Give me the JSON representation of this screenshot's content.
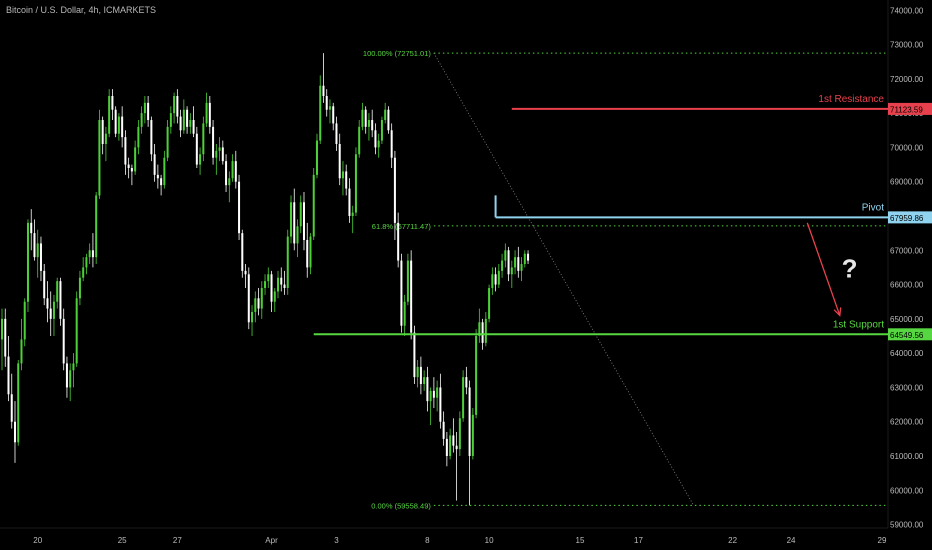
{
  "symbol_line": "Bitcoin / U.S. Dollar, 4h, ICMARKETS",
  "colors": {
    "background": "#000000",
    "bull": "#4cd137",
    "bear": "#ffffff",
    "resistance": "#e8414d",
    "pivot": "#8fd3ee",
    "support": "#56d641",
    "fib": "#56d641",
    "arrow": "#e8414d",
    "axis_text": "#bcbcbc"
  },
  "chart_data": {
    "type": "candlestick",
    "title": "Bitcoin / U.S. Dollar, 4h, ICMARKETS",
    "y_axis": {
      "position": "right",
      "min": 58900,
      "max": 74300,
      "ticks": [
        59000,
        60000,
        61000,
        62000,
        63000,
        64000,
        65000,
        66000,
        67000,
        68000,
        69000,
        70000,
        71000,
        72000,
        73000,
        74000
      ],
      "tick_labels": [
        "59000.00",
        "60000.00",
        "61000.00",
        "62000.00",
        "63000.00",
        "64000.00",
        "65000.00",
        "66000.00",
        "67000.00",
        "68000.00",
        "69000.00",
        "70000.00",
        "71000.00",
        "72000.00",
        "73000.00",
        "74000.00"
      ]
    },
    "x_axis": {
      "unit": "candle index (4h bars)",
      "min": 0,
      "max": 271,
      "ticks": [
        {
          "index": 11,
          "label": "20"
        },
        {
          "index": 37,
          "label": "25"
        },
        {
          "index": 54,
          "label": "27"
        },
        {
          "index": 83,
          "label": "Apr"
        },
        {
          "index": 103,
          "label": "3"
        },
        {
          "index": 131,
          "label": "8"
        },
        {
          "index": 150,
          "label": "10"
        },
        {
          "index": 178,
          "label": "15"
        },
        {
          "index": 196,
          "label": "17"
        },
        {
          "index": 225,
          "label": "22"
        },
        {
          "index": 243,
          "label": "24"
        },
        {
          "index": 271,
          "label": "29"
        }
      ]
    },
    "levels": [
      {
        "name": "1st Resistance",
        "value": 71123.59,
        "label": "71123.59",
        "from_index": 157,
        "color": "#e8414d"
      },
      {
        "name": "Pivot",
        "value": 67959.86,
        "label": "67959.86",
        "from_index": 152,
        "color": "#8fd3ee"
      },
      {
        "name": "1st Support",
        "value": 64549.56,
        "label": "64549.56",
        "from_index": 96,
        "color": "#56d641"
      }
    ],
    "fibonacci": {
      "high": {
        "label": "100.00% (72751.01)",
        "value": 72751.01
      },
      "mid": {
        "label": "61.8% (67711.47)",
        "value": 67711.47
      },
      "low": {
        "label": "0.00% (59558.49)",
        "value": 59558.49
      },
      "from_index": 133,
      "to_index": 213
    },
    "annotations": [
      {
        "type": "arrow",
        "from": {
          "index": 248,
          "value": 67800
        },
        "to": {
          "index": 258,
          "value": 65100
        }
      },
      {
        "type": "text",
        "text": "?",
        "index": 261,
        "value": 66200
      }
    ],
    "candles": [
      [
        64400,
        65300,
        63500,
        65000
      ],
      [
        65000,
        65300,
        63600,
        63900
      ],
      [
        63900,
        64500,
        62600,
        62800
      ],
      [
        62800,
        63400,
        61800,
        62000
      ],
      [
        62000,
        62600,
        60800,
        61400
      ],
      [
        61400,
        63800,
        61300,
        63700
      ],
      [
        63700,
        65000,
        63500,
        64400
      ],
      [
        64400,
        65600,
        64200,
        65500
      ],
      [
        65500,
        67900,
        65200,
        67800
      ],
      [
        67800,
        68200,
        67000,
        67500
      ],
      [
        67500,
        67900,
        66700,
        66800
      ],
      [
        66800,
        67600,
        66200,
        67200
      ],
      [
        67200,
        67400,
        66100,
        66400
      ],
      [
        66400,
        66600,
        65400,
        65600
      ],
      [
        65600,
        66100,
        64900,
        65300
      ],
      [
        65300,
        65800,
        64500,
        65000
      ],
      [
        65000,
        65700,
        64500,
        65500
      ],
      [
        65500,
        66200,
        65300,
        66100
      ],
      [
        66100,
        66200,
        64800,
        65000
      ],
      [
        65000,
        65300,
        63500,
        63700
      ],
      [
        63700,
        63900,
        62700,
        63000
      ],
      [
        63000,
        63700,
        62600,
        63500
      ],
      [
        63500,
        64000,
        63000,
        63700
      ],
      [
        63700,
        65800,
        63600,
        65600
      ],
      [
        65600,
        66400,
        65400,
        66200
      ],
      [
        66200,
        66800,
        66100,
        66500
      ],
      [
        66500,
        66900,
        66300,
        66800
      ],
      [
        66800,
        67200,
        66600,
        67000
      ],
      [
        67000,
        67500,
        66500,
        66800
      ],
      [
        66800,
        68700,
        66600,
        68600
      ],
      [
        68600,
        71100,
        68500,
        70800
      ],
      [
        70800,
        70900,
        69800,
        70100
      ],
      [
        70100,
        70600,
        69600,
        70400
      ],
      [
        70400,
        71700,
        70300,
        71500
      ],
      [
        71500,
        71700,
        70800,
        71100
      ],
      [
        71100,
        71200,
        70300,
        70400
      ],
      [
        70400,
        71000,
        70200,
        70900
      ],
      [
        70900,
        71200,
        70000,
        70300
      ],
      [
        70300,
        70500,
        69200,
        69500
      ],
      [
        69500,
        69700,
        69100,
        69400
      ],
      [
        69400,
        69500,
        68900,
        69300
      ],
      [
        69300,
        70200,
        69200,
        70000
      ],
      [
        70000,
        70800,
        69800,
        70600
      ],
      [
        70600,
        71200,
        70400,
        71000
      ],
      [
        71000,
        71500,
        70700,
        71300
      ],
      [
        71300,
        71500,
        70600,
        70800
      ],
      [
        70800,
        70900,
        69600,
        69800
      ],
      [
        69800,
        70100,
        69000,
        69200
      ],
      [
        69200,
        69500,
        68800,
        69100
      ],
      [
        69100,
        69200,
        68600,
        68900
      ],
      [
        68900,
        69900,
        68800,
        69700
      ],
      [
        69700,
        70800,
        69600,
        70600
      ],
      [
        70600,
        71200,
        70400,
        71000
      ],
      [
        71000,
        71600,
        70700,
        71500
      ],
      [
        71500,
        71700,
        70700,
        70900
      ],
      [
        70900,
        71100,
        70300,
        70500
      ],
      [
        70500,
        71400,
        70400,
        71100
      ],
      [
        71100,
        71200,
        70400,
        70600
      ],
      [
        70600,
        71000,
        70400,
        70800
      ],
      [
        70800,
        71200,
        70300,
        70400
      ],
      [
        70400,
        70600,
        69400,
        69500
      ],
      [
        69500,
        70000,
        69200,
        69800
      ],
      [
        69800,
        70900,
        69600,
        70700
      ],
      [
        70700,
        71600,
        70600,
        71300
      ],
      [
        71300,
        71500,
        70400,
        70600
      ],
      [
        70600,
        70800,
        69500,
        69700
      ],
      [
        69700,
        70100,
        69200,
        69900
      ],
      [
        69900,
        70300,
        69600,
        70000
      ],
      [
        70000,
        70200,
        69500,
        69600
      ],
      [
        69600,
        69800,
        68700,
        68900
      ],
      [
        68900,
        69300,
        68400,
        69100
      ],
      [
        69100,
        69800,
        69000,
        69600
      ],
      [
        69600,
        69900,
        68800,
        69000
      ],
      [
        69000,
        69200,
        67300,
        67500
      ],
      [
        67500,
        67600,
        66200,
        66400
      ],
      [
        66400,
        66600,
        65900,
        66300
      ],
      [
        66300,
        66500,
        64700,
        64900
      ],
      [
        64900,
        65400,
        64500,
        65200
      ],
      [
        65200,
        65800,
        64900,
        65600
      ],
      [
        65600,
        65900,
        65100,
        65300
      ],
      [
        65300,
        66100,
        65000,
        65900
      ],
      [
        65900,
        66300,
        65700,
        66100
      ],
      [
        66100,
        66500,
        65900,
        66300
      ],
      [
        66300,
        66400,
        65200,
        65500
      ],
      [
        65500,
        65900,
        65200,
        65800
      ],
      [
        65800,
        66400,
        65600,
        66200
      ],
      [
        66200,
        66500,
        65800,
        66000
      ],
      [
        66000,
        66400,
        65700,
        65900
      ],
      [
        65900,
        67600,
        65700,
        67400
      ],
      [
        67400,
        68600,
        67200,
        68400
      ],
      [
        68400,
        68800,
        67000,
        67200
      ],
      [
        67200,
        67900,
        66800,
        67700
      ],
      [
        67700,
        68600,
        67500,
        68400
      ],
      [
        68400,
        68700,
        67000,
        67300
      ],
      [
        67300,
        67800,
        66200,
        66500
      ],
      [
        66500,
        67500,
        66300,
        67400
      ],
      [
        67400,
        69400,
        67300,
        69200
      ],
      [
        69200,
        70400,
        69100,
        70200
      ],
      [
        70200,
        72100,
        70100,
        71800
      ],
      [
        71800,
        72751,
        71300,
        71500
      ],
      [
        71500,
        71700,
        70900,
        71100
      ],
      [
        71100,
        71400,
        70700,
        71200
      ],
      [
        71200,
        71300,
        70500,
        70700
      ],
      [
        70700,
        70900,
        69900,
        70100
      ],
      [
        70100,
        70400,
        68900,
        69100
      ],
      [
        69100,
        69600,
        68600,
        69300
      ],
      [
        69300,
        69500,
        68600,
        68800
      ],
      [
        68800,
        69100,
        67800,
        68000
      ],
      [
        68000,
        68300,
        67500,
        68100
      ],
      [
        68100,
        70000,
        68000,
        69800
      ],
      [
        69800,
        70800,
        69700,
        70600
      ],
      [
        70600,
        71300,
        70500,
        71100
      ],
      [
        71100,
        71200,
        70400,
        70600
      ],
      [
        70600,
        71000,
        70200,
        70800
      ],
      [
        70800,
        71100,
        70300,
        70500
      ],
      [
        70500,
        70700,
        69800,
        70000
      ],
      [
        70000,
        70400,
        69700,
        70200
      ],
      [
        70200,
        70900,
        70100,
        70800
      ],
      [
        70800,
        71300,
        70700,
        71100
      ],
      [
        71100,
        71200,
        70400,
        70500
      ],
      [
        70500,
        70700,
        69400,
        69700
      ],
      [
        69700,
        69900,
        67300,
        67800
      ],
      [
        67800,
        68100,
        66500,
        66700
      ],
      [
        66700,
        66900,
        64600,
        64800
      ],
      [
        64800,
        65700,
        64500,
        65500
      ],
      [
        65500,
        66900,
        65400,
        66700
      ],
      [
        66700,
        67000,
        64400,
        64600
      ],
      [
        64600,
        64800,
        63100,
        63300
      ],
      [
        63300,
        63800,
        63000,
        63600
      ],
      [
        63600,
        63900,
        62800,
        63100
      ],
      [
        63100,
        63500,
        62900,
        63300
      ],
      [
        63300,
        63600,
        62300,
        62600
      ],
      [
        62600,
        63000,
        61900,
        62900
      ],
      [
        62900,
        63300,
        62400,
        62700
      ],
      [
        62700,
        63200,
        62300,
        63000
      ],
      [
        63000,
        63400,
        61800,
        62000
      ],
      [
        62000,
        62300,
        61300,
        61500
      ],
      [
        61500,
        61700,
        60700,
        61000
      ],
      [
        61000,
        61800,
        60900,
        61600
      ],
      [
        61600,
        62100,
        61100,
        61300
      ],
      [
        61300,
        61700,
        59700,
        61200
      ],
      [
        61200,
        62300,
        61000,
        62100
      ],
      [
        62100,
        63500,
        62000,
        63300
      ],
      [
        63300,
        63600,
        62800,
        63000
      ],
      [
        63000,
        63200,
        59558,
        61000
      ],
      [
        61000,
        62400,
        60900,
        62200
      ],
      [
        62200,
        64700,
        62100,
        64500
      ],
      [
        64500,
        65300,
        64300,
        64900
      ],
      [
        64900,
        65000,
        64100,
        64300
      ],
      [
        64300,
        65200,
        64200,
        65000
      ],
      [
        65000,
        66000,
        64900,
        65900
      ],
      [
        65900,
        66500,
        65700,
        66300
      ],
      [
        66300,
        66500,
        65800,
        66000
      ],
      [
        66000,
        66600,
        65900,
        66400
      ],
      [
        66400,
        66900,
        66200,
        66700
      ],
      [
        66700,
        67200,
        66500,
        67000
      ],
      [
        67000,
        67100,
        66100,
        66300
      ],
      [
        66300,
        66700,
        65900,
        66500
      ],
      [
        66500,
        67000,
        66300,
        66800
      ],
      [
        66800,
        67100,
        66200,
        66400
      ],
      [
        66400,
        66800,
        66100,
        66600
      ],
      [
        66600,
        67000,
        66500,
        66900
      ],
      [
        66900,
        67000,
        66600,
        66700
      ]
    ],
    "candle_start_index": 0
  }
}
